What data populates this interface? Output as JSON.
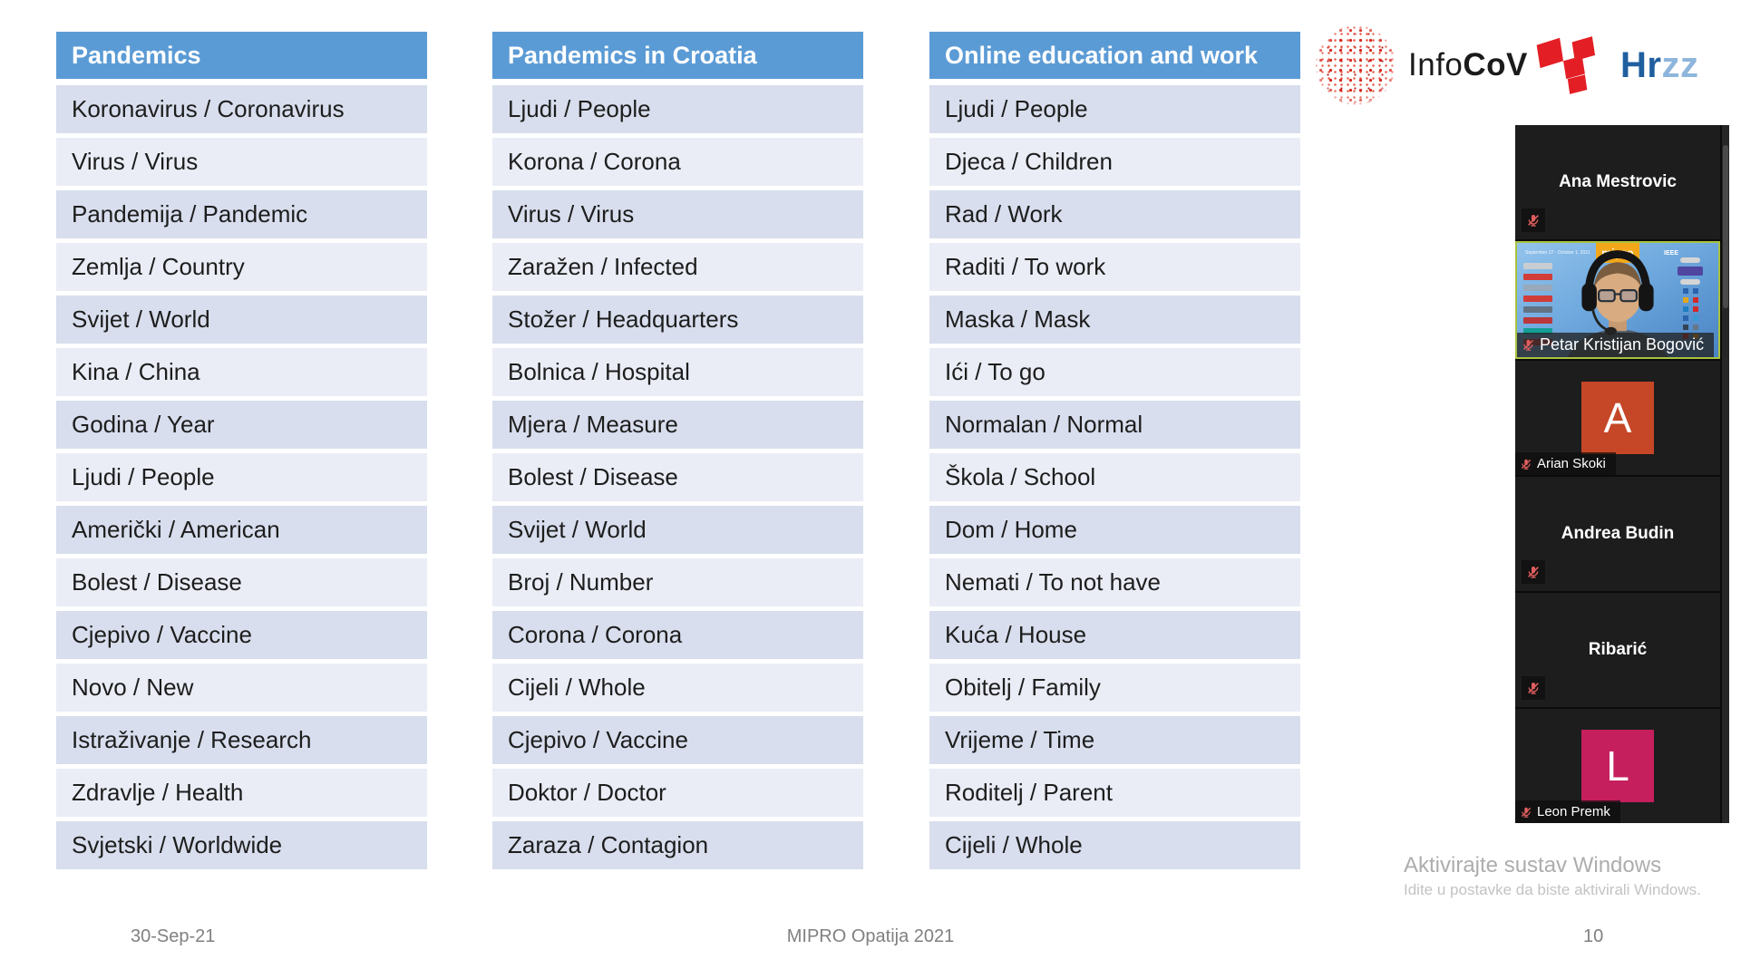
{
  "slide": {
    "tables": [
      {
        "header": "Pandemics",
        "rows": [
          "Koronavirus / Coronavirus",
          "Virus / Virus",
          "Pandemija / Pandemic",
          "Zemlja / Country",
          "Svijet / World",
          "Kina / China",
          "Godina / Year",
          "Ljudi / People",
          "Američki / American",
          "Bolest / Disease",
          "Cjepivo / Vaccine",
          "Novo / New",
          "Istraživanje / Research",
          "Zdravlje / Health",
          "Svjetski / Worldwide"
        ]
      },
      {
        "header": "Pandemics in Croatia",
        "rows": [
          "Ljudi / People",
          "Korona / Corona",
          "Virus / Virus",
          "Zaražen / Infected",
          "Stožer / Headquarters",
          "Bolnica / Hospital",
          "Mjera / Measure",
          "Bolest / Disease",
          "Svijet / World",
          "Broj / Number",
          "Corona / Corona",
          "Cijeli / Whole",
          "Cjepivo / Vaccine",
          "Doktor / Doctor",
          "Zaraza / Contagion"
        ]
      },
      {
        "header": "Online education and work",
        "rows": [
          "Ljudi / People",
          "Djeca / Children",
          "Rad / Work",
          "Raditi / To work",
          "Maska / Mask",
          "Ići / To go",
          "Normalan / Normal",
          "Škola / School",
          "Dom / Home",
          "Nemati / To not have",
          "Kuća / House",
          "Obitelj / Family",
          "Vrijeme / Time",
          "Roditelj / Parent",
          "Cijeli / Whole"
        ]
      }
    ],
    "logos": {
      "infocov_regular": "Info",
      "infocov_bold": "CoV",
      "hrzz_dark": "Hr",
      "hrzz_light": "zz"
    },
    "footer": {
      "date": "30-Sep-21",
      "center": "MIPRO Opatija 2021",
      "page": "10"
    }
  },
  "watermark": {
    "line1": "Aktivirajte sustav Windows",
    "line2": "Idite u postavke da biste aktivirali Windows."
  },
  "zoom_panel": {
    "participants": [
      {
        "name": "Ana Mestrovic",
        "type": "name",
        "muted": true
      },
      {
        "name": "Petar Kristijan Bogović",
        "type": "video",
        "muted": true,
        "active_speaker": true,
        "video_overlay": {
          "banner": "mipro",
          "ieee": "IEEE",
          "dates": "September 27 - October 1, 2021"
        }
      },
      {
        "name": "Arian Skoki",
        "type": "avatar",
        "initial": "A",
        "avatar_color": "#C54727",
        "muted": true
      },
      {
        "name": "Andrea Budin",
        "type": "name",
        "muted": true
      },
      {
        "name": "Ribarić",
        "type": "name",
        "muted": true
      },
      {
        "name": "Leon Premk",
        "type": "avatar",
        "initial": "L",
        "avatar_color": "#C51F5D",
        "muted": true
      }
    ]
  },
  "colors": {
    "header_blue": "#5B9BD5",
    "row_dark": "#D8DEED",
    "row_light": "#EAEDF6",
    "footer_gray": "#808080",
    "watermark_gray": "#ADADAD",
    "tile_bg": "#1D1D1D",
    "active_border": "#A9C23F",
    "mic_red": "#E05E5E",
    "mipro_orange": "#F2A71B",
    "infocov_red": "#D7281E",
    "hrzz_red": "#E31E24",
    "hrzz_dark_blue": "#1F5FA0",
    "hrzz_light_blue": "#8EB6DC"
  }
}
